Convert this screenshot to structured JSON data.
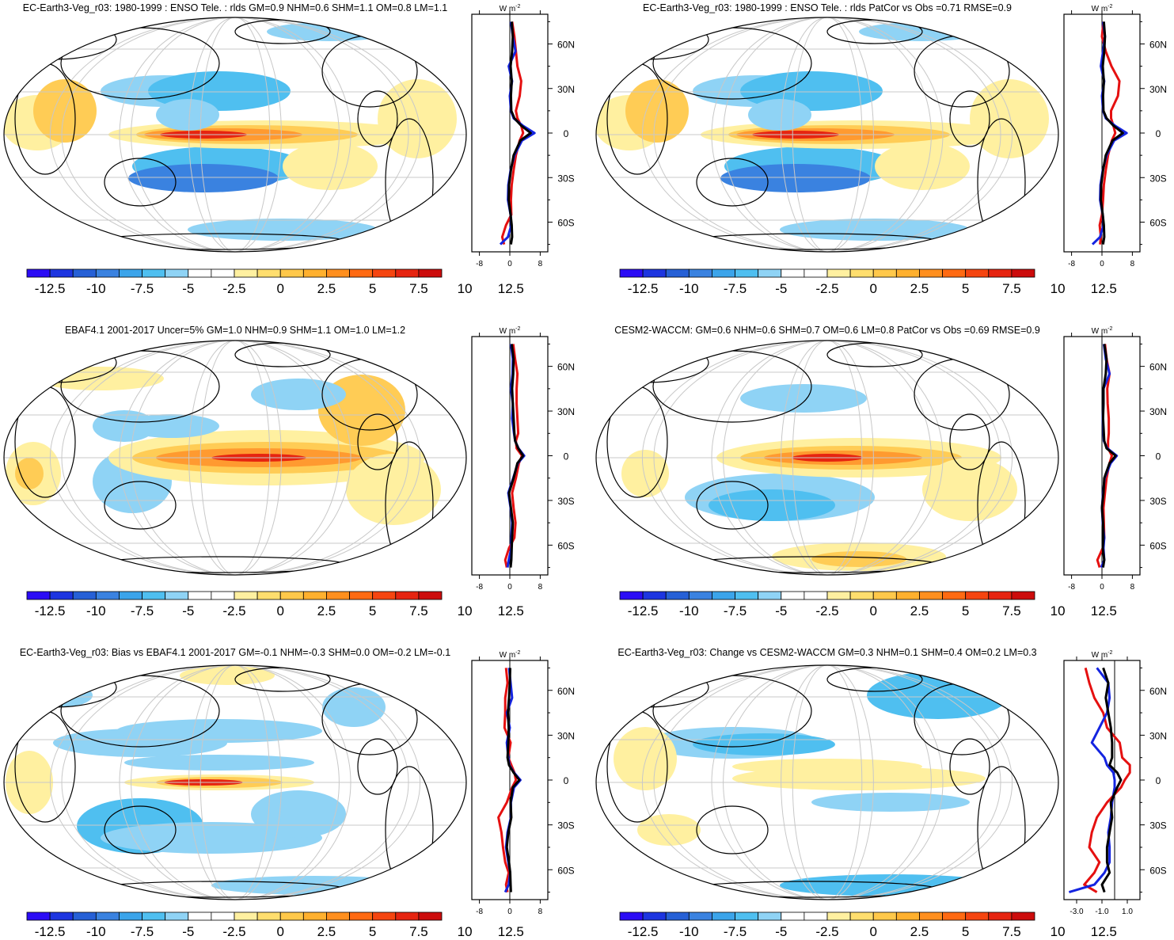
{
  "figure": {
    "units_label": "W m",
    "units_exponent": "-2",
    "colorbar_ticks": [
      "-12.5",
      "-10",
      "-7.5",
      "-5",
      "-2.5",
      "0",
      "2.5",
      "5",
      "7.5",
      "10",
      "12.5"
    ],
    "colorbar_colors": [
      "#2b0cf5",
      "#1d35e0",
      "#2660d6",
      "#3a82e0",
      "#3ba4ea",
      "#4fbff0",
      "#8fd3f5",
      "#ffffff",
      "#ffffff",
      "#fff0a0",
      "#ffde6e",
      "#ffc84a",
      "#ffb02e",
      "#ff8f1e",
      "#ff6a12",
      "#f54510",
      "#e62410",
      "#cc0c0c"
    ],
    "lat_labels": [
      "60N",
      "30N",
      "0",
      "30S",
      "60S"
    ],
    "line_colors": {
      "model": "#000000",
      "obs_red": "#e51010",
      "obs_blue": "#1424e0"
    },
    "map_colors": {
      "ocean": "#ffffff",
      "coast": "#000000",
      "grid": "#c8c8c8",
      "pos_light": "#fff0a0",
      "pos_mid": "#ffcc55",
      "pos_strong": "#ff9a30",
      "pos_max": "#e62410",
      "neg_light": "#8fd3f5",
      "neg_mid": "#4fbff0",
      "neg_strong": "#3a82e0"
    }
  },
  "panels": [
    {
      "id": "p1",
      "title": "EC-Earth3-Veg_r03: 1980-1999 : ENSO Tele. : rlds GM=0.9 NHM=0.6 SHM=1.1 OM=0.8 LM=1.1",
      "xticks": [
        "-8",
        "0",
        "8"
      ]
    },
    {
      "id": "p2",
      "title": "EC-Earth3-Veg_r03: 1980-1999 : ENSO Tele. : rlds PatCor vs Obs =0.71 RMSE=0.9",
      "xticks": [
        "-8",
        "0",
        "8"
      ]
    },
    {
      "id": "p3",
      "title": "EBAF4.1 2001-2017 Uncer=5% GM=1.0 NHM=0.9 SHM=1.1 OM=1.0 LM=1.2",
      "xticks": [
        "-8",
        "0",
        "8"
      ]
    },
    {
      "id": "p4",
      "title": "CESM2-WACCM: GM=0.6 NHM=0.6 SHM=0.7 OM=0.6 LM=0.8 PatCor vs Obs =0.69 RMSE=0.9",
      "xticks": [
        "-8",
        "0",
        "8"
      ]
    },
    {
      "id": "p5",
      "title": "EC-Earth3-Veg_r03: Bias vs EBAF4.1 2001-2017 GM=-0.1 NHM=-0.3 SHM=0.0 OM=-0.2 LM=-0.1",
      "xticks": [
        "-8",
        "0",
        "8"
      ]
    },
    {
      "id": "p6",
      "title": "EC-Earth3-Veg_r03: Change vs CESM2-WACCM GM=0.3 NHM=0.1 SHM=0.4 OM=0.2 LM=0.3",
      "xticks": [
        "-3.0",
        "-1.0",
        "1.0"
      ]
    }
  ],
  "chart_data": [
    {
      "type": "line",
      "panel": "p1",
      "title": "EC-Earth3-Veg_r03: 1980-1999 : ENSO Tele. : rlds GM=0.9 NHM=0.6 SHM=1.1 OM=0.8 LM=1.1",
      "xlabel": "W m-2",
      "xlim": [
        -10,
        10
      ],
      "ylim": [
        -80,
        80
      ],
      "y": [
        -75,
        -70,
        -62,
        -55,
        -45,
        -35,
        -25,
        -15,
        -5,
        0,
        5,
        10,
        15,
        25,
        35,
        45,
        55,
        65,
        75
      ],
      "series": [
        {
          "name": "model",
          "values": [
            0.3,
            0.6,
            0.5,
            0.2,
            -0.3,
            -0.2,
            0.3,
            1.0,
            2.8,
            5.5,
            3.0,
            1.2,
            0.4,
            0.3,
            0.5,
            0.2,
            0.6,
            0.8,
            0.5
          ]
        },
        {
          "name": "obs_red",
          "values": [
            -1.5,
            -2.0,
            -1.0,
            0.4,
            0.3,
            0.5,
            1.0,
            1.6,
            2.6,
            3.5,
            3.0,
            2.0,
            1.6,
            2.6,
            3.0,
            2.0,
            1.6,
            1.2,
            0.6
          ]
        },
        {
          "name": "obs_blue",
          "values": [
            -2.5,
            -0.5,
            0.4,
            0.2,
            -0.5,
            -0.4,
            0.2,
            1.2,
            3.2,
            6.5,
            3.4,
            1.0,
            0.3,
            0.0,
            0.6,
            -0.3,
            1.5,
            0.8,
            0.3
          ]
        }
      ]
    },
    {
      "type": "line",
      "panel": "p2",
      "title": "EC-Earth3-Veg_r03: 1980-1999 : ENSO Tele. : rlds PatCor vs Obs =0.71 RMSE=0.9",
      "xlabel": "W m-2",
      "xlim": [
        -10,
        10
      ],
      "ylim": [
        -80,
        80
      ],
      "y": [
        -75,
        -70,
        -62,
        -55,
        -45,
        -35,
        -25,
        -15,
        -5,
        0,
        5,
        10,
        15,
        25,
        35,
        45,
        55,
        65,
        75
      ],
      "series": [
        {
          "name": "model",
          "values": [
            0.3,
            0.6,
            0.5,
            0.2,
            -0.3,
            -0.2,
            0.3,
            1.0,
            2.8,
            5.5,
            3.0,
            1.2,
            0.4,
            0.3,
            0.5,
            0.2,
            0.6,
            0.8,
            0.5
          ]
        },
        {
          "name": "obs_red",
          "values": [
            -0.5,
            -0.3,
            -0.6,
            0.0,
            0.3,
            0.5,
            1.0,
            1.6,
            2.6,
            3.5,
            3.0,
            2.4,
            2.4,
            4.2,
            4.6,
            2.5,
            1.0,
            0.0,
            0.4
          ]
        },
        {
          "name": "obs_blue",
          "values": [
            -2.5,
            -0.5,
            0.4,
            0.2,
            -0.5,
            -0.4,
            0.2,
            1.2,
            3.2,
            6.5,
            3.4,
            1.0,
            0.3,
            0.0,
            0.6,
            -0.3,
            0.3,
            0.8,
            0.3
          ]
        }
      ]
    },
    {
      "type": "line",
      "panel": "p3",
      "title": "EBAF4.1 2001-2017 Uncer=5% GM=1.0 NHM=0.9 SHM=1.1 OM=1.0 LM=1.2",
      "xlabel": "W m-2",
      "xlim": [
        -10,
        10
      ],
      "ylim": [
        -80,
        80
      ],
      "y": [
        -75,
        -70,
        -62,
        -55,
        -45,
        -35,
        -25,
        -15,
        -5,
        0,
        5,
        10,
        15,
        25,
        35,
        45,
        55,
        65,
        75
      ],
      "series": [
        {
          "name": "model",
          "values": [
            0.2,
            0.4,
            0.5,
            0.6,
            0.8,
            0.3,
            -0.2,
            1.0,
            2.0,
            3.5,
            2.2,
            1.4,
            1.2,
            1.0,
            0.8,
            0.6,
            0.9,
            1.0,
            0.5
          ]
        },
        {
          "name": "obs_red",
          "values": [
            -0.8,
            -1.2,
            -0.2,
            1.2,
            1.5,
            1.0,
            0.6,
            1.6,
            2.4,
            3.2,
            1.8,
            1.6,
            2.2,
            2.0,
            1.8,
            1.8,
            2.0,
            1.4,
            0.9
          ]
        },
        {
          "name": "obs_blue",
          "values": [
            -0.6,
            -0.3,
            0.4,
            0.4,
            0.6,
            0.2,
            -0.4,
            0.9,
            2.1,
            3.8,
            2.3,
            1.4,
            1.1,
            0.6,
            0.8,
            0.3,
            0.7,
            0.8,
            0.3
          ]
        }
      ]
    },
    {
      "type": "line",
      "panel": "p4",
      "title": "CESM2-WACCM: GM=0.6 NHM=0.6 SHM=0.7 OM=0.6 LM=0.8 PatCor vs Obs =0.69 RMSE=0.9",
      "xlabel": "W m-2",
      "xlim": [
        -10,
        10
      ],
      "ylim": [
        -80,
        80
      ],
      "y": [
        -75,
        -70,
        -62,
        -55,
        -45,
        -35,
        -25,
        -15,
        -5,
        0,
        5,
        10,
        15,
        25,
        35,
        45,
        55,
        65,
        75
      ],
      "series": [
        {
          "name": "model",
          "values": [
            0.3,
            0.6,
            0.2,
            0.4,
            0.3,
            0.0,
            0.4,
            0.6,
            2.0,
            3.6,
            1.2,
            0.6,
            0.5,
            0.3,
            0.4,
            0.4,
            1.0,
            1.2,
            0.6
          ]
        },
        {
          "name": "obs_red",
          "values": [
            -0.6,
            -1.2,
            0.2,
            0.6,
            0.5,
            0.4,
            0.8,
            1.2,
            2.0,
            2.6,
            1.6,
            1.6,
            1.8,
            1.8,
            1.5,
            1.4,
            2.0,
            1.2,
            0.8
          ]
        },
        {
          "name": "obs_blue",
          "values": [
            -0.2,
            0.6,
            0.4,
            0.6,
            0.2,
            0.0,
            0.3,
            0.7,
            2.3,
            3.9,
            1.4,
            0.5,
            0.4,
            0.2,
            0.4,
            0.4,
            2.0,
            1.0,
            0.5
          ]
        }
      ]
    },
    {
      "type": "line",
      "panel": "p5",
      "title": "EC-Earth3-Veg_r03: Bias vs EBAF4.1 2001-2017 GM=-0.1 NHM=-0.3 SHM=0.0 OM=-0.2 LM=-0.1",
      "xlabel": "W m-2",
      "xlim": [
        -10,
        10
      ],
      "ylim": [
        -80,
        80
      ],
      "y": [
        -75,
        -70,
        -62,
        -55,
        -45,
        -35,
        -25,
        -15,
        -5,
        0,
        5,
        10,
        15,
        25,
        35,
        45,
        55,
        65,
        75
      ],
      "series": [
        {
          "name": "model",
          "values": [
            0.3,
            0.2,
            0.1,
            -0.2,
            -0.8,
            -0.4,
            0.4,
            0.2,
            0.8,
            2.5,
            1.0,
            -0.2,
            -0.6,
            -0.4,
            -0.3,
            -0.5,
            -0.2,
            0.0,
            0.1
          ]
        },
        {
          "name": "obs_red",
          "values": [
            -0.6,
            -1.0,
            -0.3,
            -1.2,
            -1.8,
            -2.2,
            -3.0,
            -0.8,
            0.6,
            1.6,
            1.2,
            0.4,
            -0.4,
            0.2,
            -1.4,
            -1.2,
            -1.2,
            -0.6,
            -1.0
          ]
        },
        {
          "name": "obs_blue",
          "values": [
            -1.2,
            -0.3,
            0.1,
            -0.4,
            -1.0,
            -0.6,
            0.3,
            0.3,
            1.1,
            2.8,
            1.1,
            -0.1,
            -0.4,
            -0.8,
            0.0,
            -0.8,
            0.6,
            0.2,
            -0.2
          ]
        }
      ]
    },
    {
      "type": "line",
      "panel": "p6",
      "title": "EC-Earth3-Veg_r03: Change vs CESM2-WACCM GM=0.3 NHM=0.1 SHM=0.4 OM=0.2 LM=0.3",
      "xlabel": "W m-2",
      "xlim": [
        -4,
        2
      ],
      "ylim": [
        -80,
        80
      ],
      "y": [
        -75,
        -70,
        -62,
        -55,
        -45,
        -35,
        -25,
        -15,
        -5,
        0,
        5,
        10,
        15,
        25,
        35,
        45,
        55,
        65,
        75
      ],
      "series": [
        {
          "name": "model",
          "values": [
            -0.8,
            -1.0,
            -0.4,
            -0.6,
            -0.6,
            -0.4,
            -0.2,
            -0.3,
            0.2,
            0.5,
            0.2,
            -0.4,
            -0.2,
            -0.2,
            -0.3,
            -0.5,
            -0.7,
            -0.5,
            -0.9
          ]
        },
        {
          "name": "obs_red",
          "values": [
            -1.4,
            -2.4,
            -1.6,
            -1.2,
            -2.0,
            -1.8,
            -1.4,
            -0.6,
            0.5,
            0.8,
            1.2,
            1.2,
            0.6,
            0.4,
            -0.6,
            -0.9,
            -1.6,
            -2.0,
            -2.3
          ]
        },
        {
          "name": "obs_blue",
          "values": [
            -3.6,
            -1.6,
            -0.8,
            -0.4,
            -0.4,
            -0.5,
            -0.3,
            -0.2,
            0.0,
            0.0,
            -0.1,
            -0.6,
            -0.8,
            -1.8,
            -1.2,
            -0.6,
            -0.4,
            -0.5,
            -1.4
          ]
        }
      ]
    }
  ]
}
